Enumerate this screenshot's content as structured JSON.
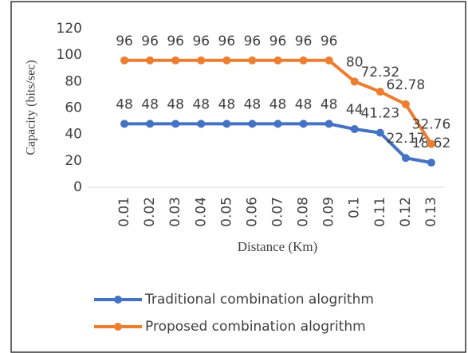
{
  "chart_data": {
    "type": "line",
    "y_label": "Capacity (bits/sec)",
    "x_label": "Distance (Km)",
    "categories": [
      "0.01",
      "0.02",
      "0.03",
      "0.04",
      "0.05",
      "0.06",
      "0.07",
      "0.08",
      "0.09",
      "0.1",
      "0.11",
      "0.12",
      "0.13"
    ],
    "series": [
      {
        "name": "Traditional combination alogrithm",
        "color": "#4472c4",
        "values": [
          48,
          48,
          48,
          48,
          48,
          48,
          48,
          48,
          48,
          44,
          41.23,
          22.17,
          18.62
        ]
      },
      {
        "name": "Proposed combination alogrithm",
        "color": "#ed7d31",
        "values": [
          96,
          96,
          96,
          96,
          96,
          96,
          96,
          96,
          96,
          80,
          72.32,
          62.78,
          32.76
        ]
      }
    ],
    "ylim": [
      0,
      120
    ],
    "yticks": [
      0,
      20,
      40,
      60,
      80,
      100,
      120
    ],
    "grid": false,
    "legend": "bottom-left"
  }
}
